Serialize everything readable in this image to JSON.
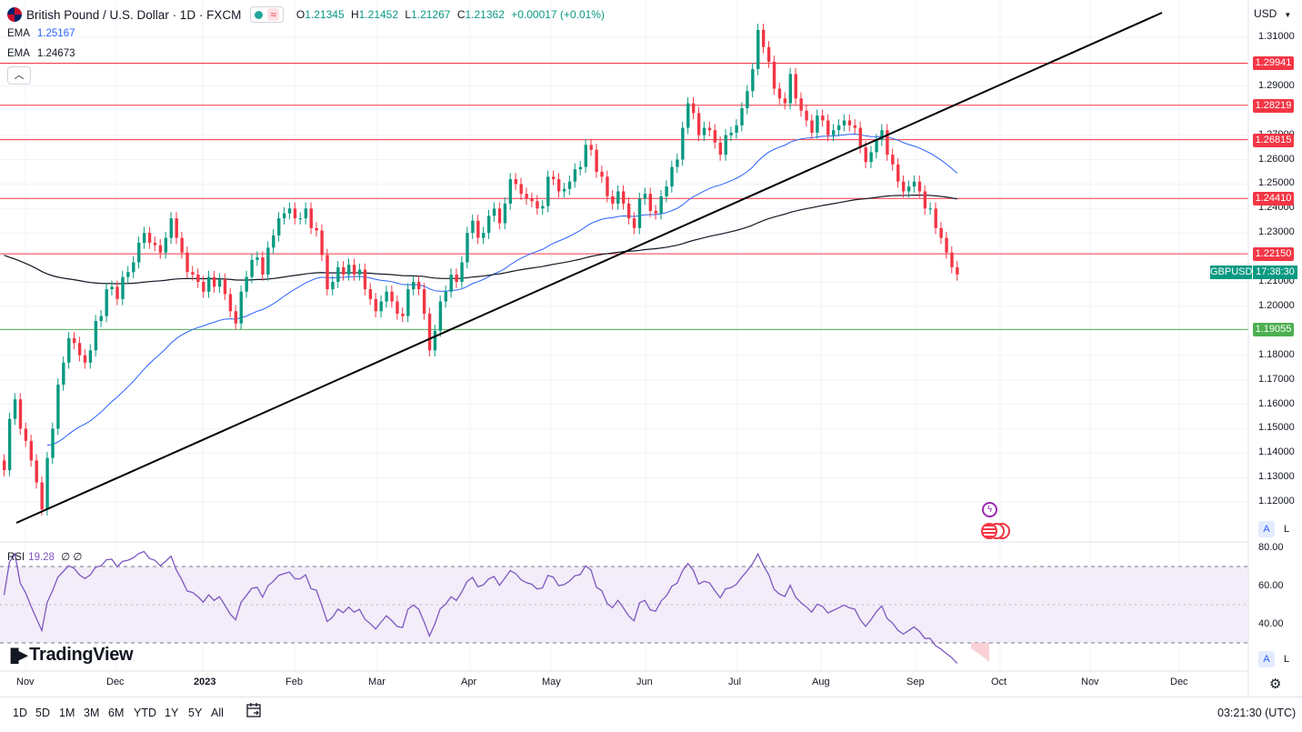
{
  "header": {
    "symbol_title": "British Pound / U.S. Dollar · 1D · FXCM",
    "approx_icon": "≈",
    "ohlc": {
      "o_key": "O",
      "o_val": "1.21345",
      "h_key": "H",
      "h_val": "1.21452",
      "l_key": "L",
      "l_val": "1.21267",
      "c_key": "C",
      "c_val": "1.21362",
      "change": "+0.00017 (+0.01%)"
    },
    "indicators": [
      {
        "label": "EMA",
        "value": "1.25167",
        "color": "#2962ff"
      },
      {
        "label": "EMA",
        "value": "1.24673",
        "color": "#131722"
      }
    ],
    "collapse_icon": "chevron-up-icon"
  },
  "currency": "USD",
  "price_axis": {
    "ticks": [
      "1.31000",
      "1.29000",
      "1.27000",
      "1.26000",
      "1.25000",
      "1.24000",
      "1.23000",
      "1.21000",
      "1.20000",
      "1.18000",
      "1.17000",
      "1.16000",
      "1.15000",
      "1.14000",
      "1.13000",
      "1.12000"
    ],
    "levels": [
      {
        "value": "1.29941",
        "color": "#f23645"
      },
      {
        "value": "1.28219",
        "color": "#f23645"
      },
      {
        "value": "1.26815",
        "color": "#f23645"
      },
      {
        "value": "1.24410",
        "color": "#f23645"
      },
      {
        "value": "1.22150",
        "color": "#f23645"
      },
      {
        "value": "1.19055",
        "color": "#4caf50"
      }
    ],
    "current_symbol": "GBPUSD",
    "current_countdown": "17:38:30"
  },
  "rsi": {
    "label": "RSI",
    "value": "19.28",
    "extra": "∅ ∅",
    "ticks": [
      "80.00",
      "60.00",
      "40.00"
    ],
    "upper_band": 70,
    "lower_band": 30
  },
  "time_axis": [
    "Nov",
    "Dec",
    "2023",
    "Feb",
    "Mar",
    "Apr",
    "May",
    "Jun",
    "Jul",
    "Aug",
    "Sep",
    "Oct",
    "Nov",
    "Dec"
  ],
  "branding": "TradingView",
  "toolbar": {
    "timeframes": [
      "1D",
      "5D",
      "1M",
      "3M",
      "6M",
      "YTD",
      "1Y",
      "5Y",
      "All"
    ],
    "clock": "03:21:30 (UTC)"
  },
  "scale_buttons": {
    "auto": "A",
    "log": "L"
  },
  "colors": {
    "up": "#089981",
    "down": "#f23645",
    "ema_fast": "#2962ff",
    "ema_slow": "#131722",
    "rsi": "#7e57c2",
    "rsi_band": "#ede7f6"
  }
}
